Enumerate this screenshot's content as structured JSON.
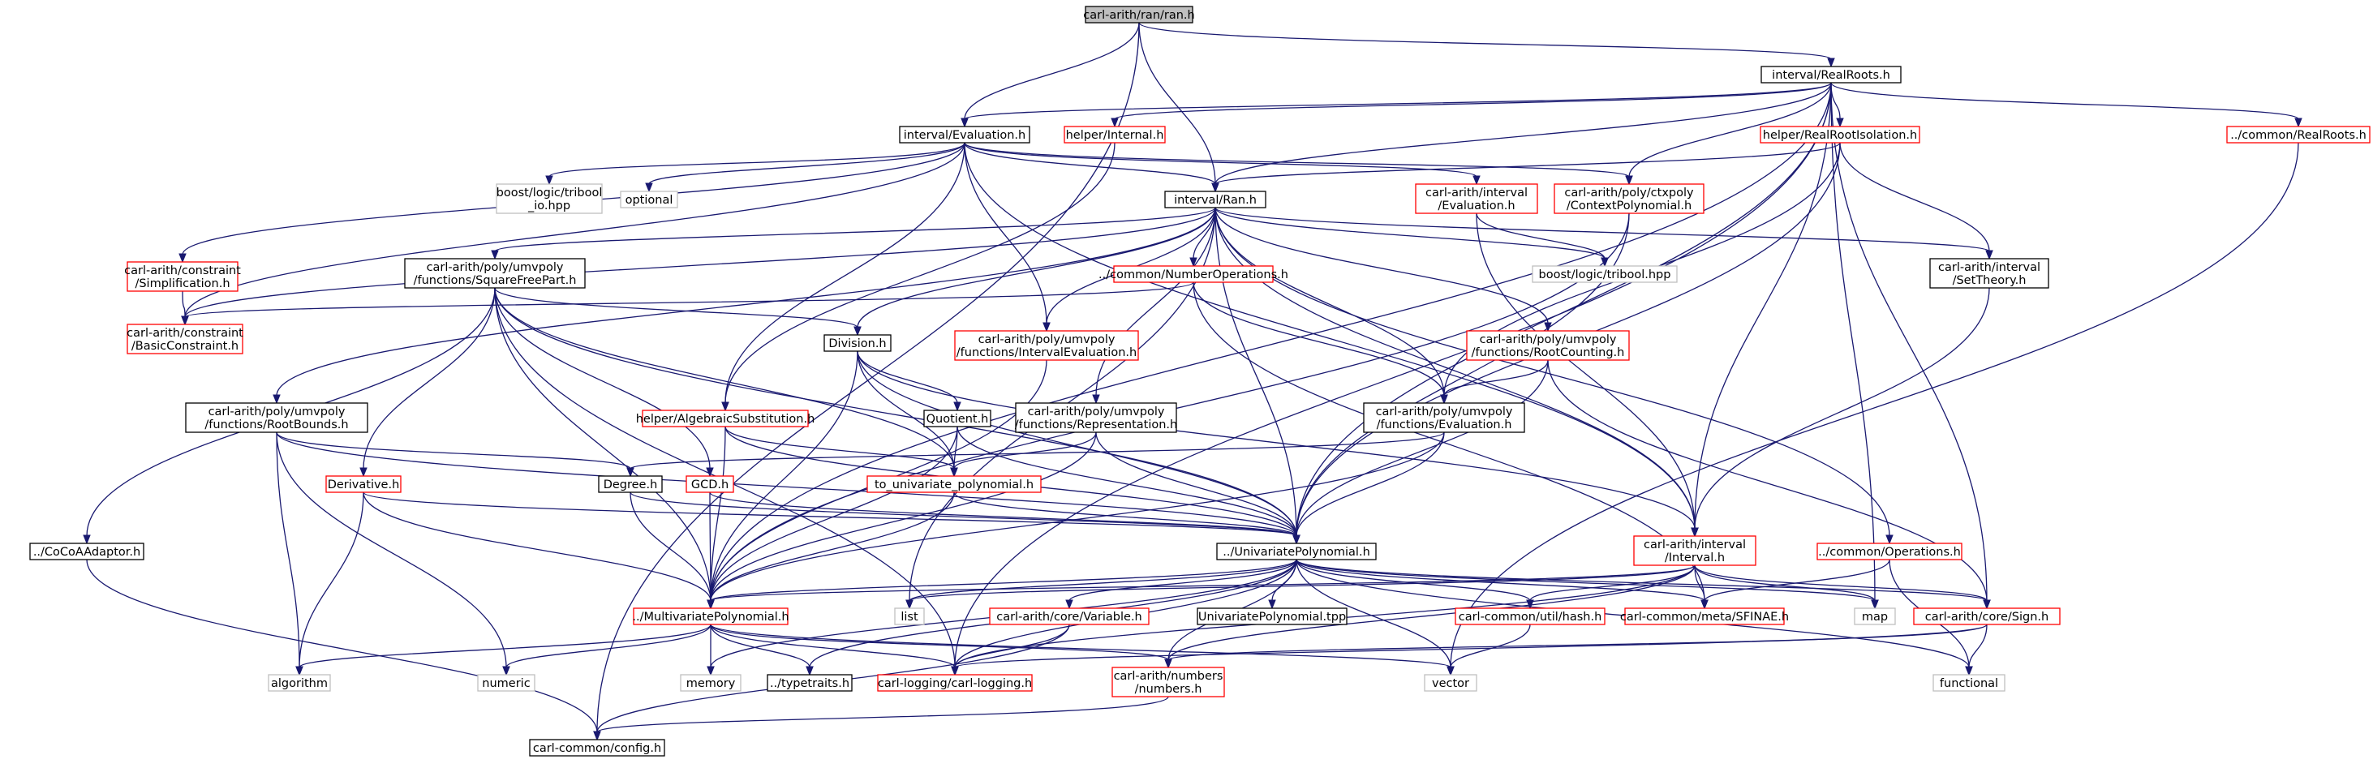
{
  "colors": {
    "edge": "#191970",
    "root_fill": "#bfbfbf",
    "documented_border": "#000000",
    "undocumented_border": "#ff0000",
    "external_border": "#bfbfbf"
  },
  "nodes": [
    {
      "id": "ran",
      "lines": [
        "carl-arith/ran/ran.h"
      ],
      "kind": "root"
    },
    {
      "id": "realroots",
      "lines": [
        "interval/RealRoots.h"
      ],
      "kind": "doc"
    },
    {
      "id": "ieval",
      "lines": [
        "interval/Evaluation.h"
      ],
      "kind": "doc"
    },
    {
      "id": "helperinternal",
      "lines": [
        "helper/Internal.h"
      ],
      "kind": "red"
    },
    {
      "id": "rootiso",
      "lines": [
        "helper/RealRootIsolation.h"
      ],
      "kind": "red"
    },
    {
      "id": "commonrealroots",
      "lines": [
        "../common/RealRoots.h"
      ],
      "kind": "red"
    },
    {
      "id": "constraintsimp",
      "lines": [
        "carl-arith/constraint",
        "/Simplification.h"
      ],
      "kind": "red"
    },
    {
      "id": "tribool_io",
      "lines": [
        "boost/logic/tribool",
        "_io.hpp"
      ],
      "kind": "ext"
    },
    {
      "id": "optional",
      "lines": [
        "optional"
      ],
      "kind": "ext"
    },
    {
      "id": "intervalran",
      "lines": [
        "interval/Ran.h"
      ],
      "kind": "doc"
    },
    {
      "id": "ciieval",
      "lines": [
        "carl-arith/interval",
        "/Evaluation.h"
      ],
      "kind": "red"
    },
    {
      "id": "ctxpoly",
      "lines": [
        "carl-arith/poly/ctxpoly",
        "/ContextPolynomial.h"
      ],
      "kind": "red"
    },
    {
      "id": "settheory",
      "lines": [
        "carl-arith/interval",
        "/SetTheory.h"
      ],
      "kind": "doc"
    },
    {
      "id": "sqfree",
      "lines": [
        "carl-arith/poly/umvpoly",
        "/functions/SquareFreePart.h"
      ],
      "kind": "doc"
    },
    {
      "id": "numops",
      "lines": [
        "../common/NumberOperations.h"
      ],
      "kind": "red"
    },
    {
      "id": "tribool",
      "lines": [
        "boost/logic/tribool.hpp"
      ],
      "kind": "ext"
    },
    {
      "id": "basicconstraint",
      "lines": [
        "carl-arith/constraint",
        "/BasicConstraint.h"
      ],
      "kind": "red"
    },
    {
      "id": "division",
      "lines": [
        "Division.h"
      ],
      "kind": "doc"
    },
    {
      "id": "intervaleval",
      "lines": [
        "carl-arith/poly/umvpoly",
        "/functions/IntervalEvaluation.h"
      ],
      "kind": "red"
    },
    {
      "id": "rootcounting",
      "lines": [
        "carl-arith/poly/umvpoly",
        "/functions/RootCounting.h"
      ],
      "kind": "red"
    },
    {
      "id": "rootbounds",
      "lines": [
        "carl-arith/poly/umvpoly",
        "/functions/RootBounds.h"
      ],
      "kind": "doc"
    },
    {
      "id": "algsubst",
      "lines": [
        "helper/AlgebraicSubstitution.h"
      ],
      "kind": "red"
    },
    {
      "id": "quotient",
      "lines": [
        "Quotient.h"
      ],
      "kind": "doc"
    },
    {
      "id": "representation",
      "lines": [
        "carl-arith/poly/umvpoly",
        "/functions/Representation.h"
      ],
      "kind": "doc"
    },
    {
      "id": "fneval",
      "lines": [
        "carl-arith/poly/umvpoly",
        "/functions/Evaluation.h"
      ],
      "kind": "doc"
    },
    {
      "id": "derivative",
      "lines": [
        "Derivative.h"
      ],
      "kind": "red"
    },
    {
      "id": "degree",
      "lines": [
        "Degree.h"
      ],
      "kind": "doc"
    },
    {
      "id": "gcd",
      "lines": [
        "GCD.h"
      ],
      "kind": "red"
    },
    {
      "id": "tounivariate",
      "lines": [
        "to_univariate_polynomial.h"
      ],
      "kind": "red"
    },
    {
      "id": "cocoa",
      "lines": [
        "../CoCoAAdaptor.h"
      ],
      "kind": "doc"
    },
    {
      "id": "univariate",
      "lines": [
        "../UnivariatePolynomial.h"
      ],
      "kind": "doc"
    },
    {
      "id": "interval",
      "lines": [
        "carl-arith/interval",
        "/Interval.h"
      ],
      "kind": "red"
    },
    {
      "id": "operations",
      "lines": [
        "../common/Operations.h"
      ],
      "kind": "red"
    },
    {
      "id": "multivariate",
      "lines": [
        "../MultivariatePolynomial.h"
      ],
      "kind": "red"
    },
    {
      "id": "list",
      "lines": [
        "list"
      ],
      "kind": "ext"
    },
    {
      "id": "variable",
      "lines": [
        "carl-arith/core/Variable.h"
      ],
      "kind": "red"
    },
    {
      "id": "univtpp",
      "lines": [
        "UnivariatePolynomial.tpp"
      ],
      "kind": "doc"
    },
    {
      "id": "hash",
      "lines": [
        "carl-common/util/hash.h"
      ],
      "kind": "red"
    },
    {
      "id": "sfinae",
      "lines": [
        "carl-common/meta/SFINAE.h"
      ],
      "kind": "red"
    },
    {
      "id": "map",
      "lines": [
        "map"
      ],
      "kind": "ext"
    },
    {
      "id": "sign",
      "lines": [
        "carl-arith/core/Sign.h"
      ],
      "kind": "red"
    },
    {
      "id": "algorithm",
      "lines": [
        "algorithm"
      ],
      "kind": "ext"
    },
    {
      "id": "numeric",
      "lines": [
        "numeric"
      ],
      "kind": "ext"
    },
    {
      "id": "memory",
      "lines": [
        "memory"
      ],
      "kind": "ext"
    },
    {
      "id": "typetraits",
      "lines": [
        "../typetraits.h"
      ],
      "kind": "doc"
    },
    {
      "id": "logging",
      "lines": [
        "carl-logging/carl-logging.h"
      ],
      "kind": "red"
    },
    {
      "id": "numbers",
      "lines": [
        "carl-arith/numbers",
        "/numbers.h"
      ],
      "kind": "red"
    },
    {
      "id": "vector",
      "lines": [
        "vector"
      ],
      "kind": "ext"
    },
    {
      "id": "functional",
      "lines": [
        "functional"
      ],
      "kind": "ext"
    },
    {
      "id": "config",
      "lines": [
        "carl-common/config.h"
      ],
      "kind": "doc"
    }
  ]
}
